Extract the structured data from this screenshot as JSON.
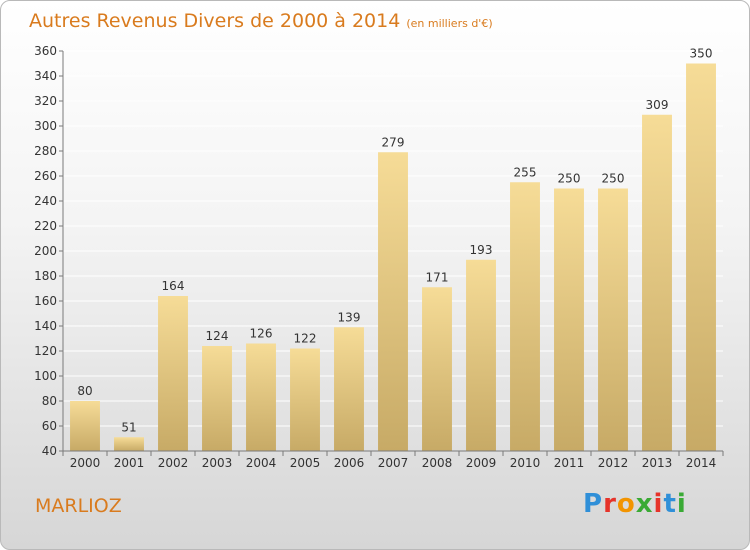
{
  "header": {
    "title": "Autres Revenus Divers de 2000 à 2014",
    "subtitle": "(en milliers d'€)"
  },
  "footer": {
    "town": "MARLIOZ",
    "logo_text": "Proxiti"
  },
  "colors": {
    "title": "#d97b1e",
    "bar_top": "#f6dc97",
    "bar_bottom": "#c7aa66",
    "axis": "#7a7a7a",
    "grid": "#ffffff"
  },
  "logo_icon": "proxiti-logo",
  "chart_data": {
    "type": "bar",
    "title": "Autres Revenus Divers de 2000 à 2014",
    "subtitle": "(en milliers d'€)",
    "categories": [
      "2000",
      "2001",
      "2002",
      "2003",
      "2004",
      "2005",
      "2006",
      "2007",
      "2008",
      "2009",
      "2010",
      "2011",
      "2012",
      "2013",
      "2014"
    ],
    "values": [
      80,
      51,
      164,
      124,
      126,
      122,
      139,
      279,
      171,
      193,
      255,
      250,
      250,
      309,
      350
    ],
    "ylim": [
      40,
      360
    ],
    "yticks": [
      40,
      60,
      80,
      100,
      120,
      140,
      160,
      180,
      200,
      220,
      240,
      260,
      280,
      300,
      320,
      340,
      360
    ],
    "grid": true,
    "legend": "none"
  }
}
